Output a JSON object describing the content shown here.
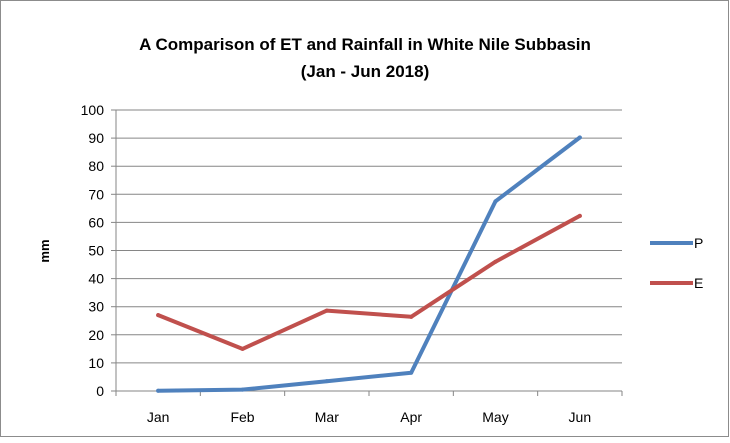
{
  "chart_data": {
    "type": "line",
    "title": "A Comparison of ET and Rainfall in White Nile Subbasin",
    "subtitle": "(Jan - Jun 2018)",
    "xlabel": "",
    "ylabel": "mm",
    "categories": [
      "Jan",
      "Feb",
      "Mar",
      "Apr",
      "May",
      "Jun"
    ],
    "ylim": [
      0,
      100
    ],
    "yticks": [
      0,
      10,
      20,
      30,
      40,
      50,
      60,
      70,
      80,
      90,
      100
    ],
    "grid": true,
    "legend_position": "right",
    "series": [
      {
        "name": "P",
        "color": "#4F81BD",
        "values": [
          0.1,
          0.5,
          3.5,
          6.5,
          67.5,
          90.2
        ]
      },
      {
        "name": "E",
        "color": "#C0504D",
        "values": [
          27,
          15,
          28.6,
          26.4,
          46,
          62.3
        ]
      }
    ]
  }
}
